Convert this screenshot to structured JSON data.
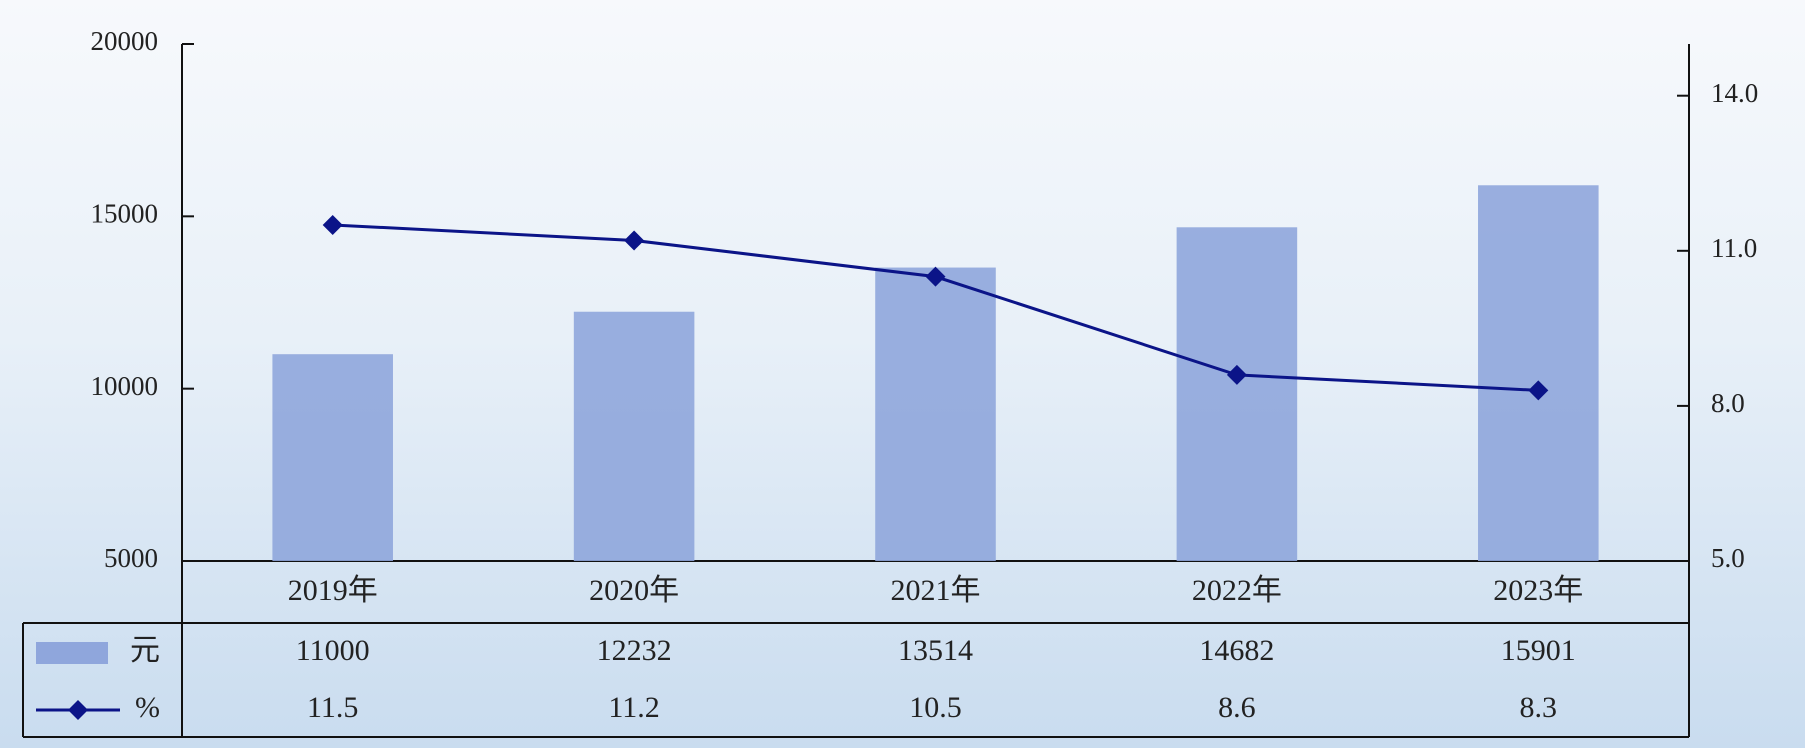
{
  "chart_data": {
    "type": "bar",
    "categories": [
      "2019年",
      "2020年",
      "2021年",
      "2022年",
      "2023年"
    ],
    "series": [
      {
        "name": "元",
        "type": "bar",
        "color": "#8fa6dc",
        "values": [
          11000,
          12232,
          13514,
          14682,
          15901
        ]
      },
      {
        "name": "%",
        "type": "line",
        "axis": "y2",
        "color": "#0b1488",
        "values": [
          11.5,
          11.2,
          10.5,
          8.6,
          8.3
        ]
      }
    ],
    "ylim": [
      5000,
      20000
    ],
    "yticks": [
      5000,
      10000,
      15000,
      20000
    ],
    "y2lim": [
      5,
      15
    ],
    "y2ticks": [
      {
        "value": 5,
        "label": "5.0"
      },
      {
        "value": 8,
        "label": "8.0"
      },
      {
        "value": 11,
        "label": "11.0"
      },
      {
        "value": 14,
        "label": "14.0"
      }
    ]
  }
}
